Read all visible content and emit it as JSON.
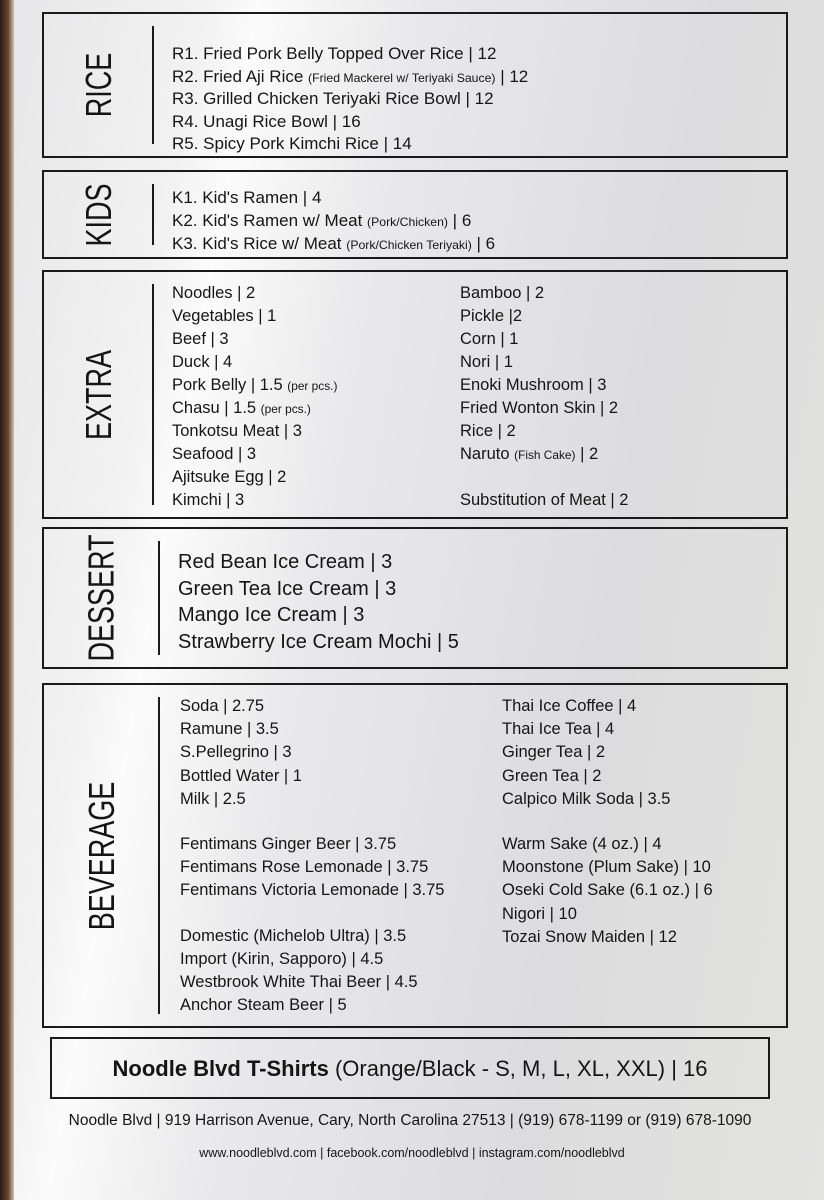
{
  "sections": [
    {
      "title": "RICE",
      "cols": [
        [
          [
            {
              "t": "R1.   Fried Pork Belly Topped Over Rice | 12"
            }
          ],
          [
            {
              "t": "R2.   Fried Aji Rice "
            },
            {
              "t": "(Fried Mackerel w/ Teriyaki Sauce)",
              "s": 1
            },
            {
              "t": " | 12"
            }
          ],
          [
            {
              "t": "R3.   Grilled Chicken Teriyaki Rice Bowl | 12"
            }
          ],
          [
            {
              "t": "R4.   Unagi Rice Bowl | 16"
            }
          ],
          [
            {
              "t": "R5.   Spicy Pork Kimchi Rice | 14"
            }
          ]
        ]
      ]
    },
    {
      "title": "KIDS",
      "cols": [
        [
          [
            {
              "t": "K1.   Kid's Ramen | 4"
            }
          ],
          [
            {
              "t": "K2.   Kid's Ramen w/ Meat "
            },
            {
              "t": "(Pork/Chicken)",
              "s": 1
            },
            {
              "t": " | 6"
            }
          ],
          [
            {
              "t": "K3.   Kid's Rice w/ Meat "
            },
            {
              "t": "(Pork/Chicken Teriyaki)",
              "s": 1
            },
            {
              "t": " | 6"
            }
          ]
        ]
      ]
    },
    {
      "title": "EXTRA",
      "cols": [
        [
          [
            {
              "t": "Noodles | 2"
            }
          ],
          [
            {
              "t": "Vegetables | 1"
            }
          ],
          [
            {
              "t": "Beef | 3"
            }
          ],
          [
            {
              "t": "Duck | 4"
            }
          ],
          [
            {
              "t": "Pork Belly | 1.5 "
            },
            {
              "t": "(per pcs.)",
              "s": 1
            }
          ],
          [
            {
              "t": "Chasu | 1.5 "
            },
            {
              "t": "(per pcs.)",
              "s": 1
            }
          ],
          [
            {
              "t": "Tonkotsu Meat | 3"
            }
          ],
          [
            {
              "t": "Seafood | 3"
            }
          ],
          [
            {
              "t": "Ajitsuke Egg | 2"
            }
          ],
          [
            {
              "t": "Kimchi | 3"
            }
          ]
        ],
        [
          [
            {
              "t": "Bamboo | 2"
            }
          ],
          [
            {
              "t": "Pickle |2"
            }
          ],
          [
            {
              "t": "Corn | 1"
            }
          ],
          [
            {
              "t": "Nori | 1"
            }
          ],
          [
            {
              "t": "Enoki Mushroom | 3"
            }
          ],
          [
            {
              "t": "Fried Wonton Skin | 2"
            }
          ],
          [
            {
              "t": "Rice | 2"
            }
          ],
          [
            {
              "t": "Naruto "
            },
            {
              "t": "(Fish Cake)",
              "s": 1
            },
            {
              "t": " | 2"
            }
          ],
          [],
          [
            {
              "t": "Substitution of Meat | 2"
            }
          ]
        ]
      ]
    },
    {
      "title": "DESSERT",
      "cols": [
        [
          [
            {
              "t": "Red Bean Ice Cream | 3"
            }
          ],
          [
            {
              "t": "Green Tea Ice Cream | 3"
            }
          ],
          [
            {
              "t": "Mango Ice Cream | 3"
            }
          ],
          [
            {
              "t": "Strawberry Ice Cream Mochi | 5"
            }
          ]
        ]
      ]
    },
    {
      "title": "BEVERAGE",
      "cols": [
        [
          [
            {
              "t": "Soda | 2.75"
            }
          ],
          [
            {
              "t": "Ramune | 3.5"
            }
          ],
          [
            {
              "t": "S.Pellegrino | 3"
            }
          ],
          [
            {
              "t": "Bottled Water | 1"
            }
          ],
          [
            {
              "t": "Milk | 2.5"
            }
          ],
          null,
          [
            {
              "t": "Fentimans Ginger Beer | 3.75"
            }
          ],
          [
            {
              "t": "Fentimans Rose Lemonade | 3.75"
            }
          ],
          [
            {
              "t": "Fentimans Victoria Lemonade | 3.75"
            }
          ],
          null,
          [
            {
              "t": "Domestic (Michelob Ultra) | 3.5"
            }
          ],
          [
            {
              "t": "Import (Kirin, Sapporo) | 4.5"
            }
          ],
          [
            {
              "t": "Westbrook White Thai Beer | 4.5"
            }
          ],
          [
            {
              "t": "Anchor Steam Beer | 5"
            }
          ]
        ],
        [
          [
            {
              "t": "Thai Ice Coffee | 4"
            }
          ],
          [
            {
              "t": "Thai Ice Tea | 4"
            }
          ],
          [
            {
              "t": "Ginger Tea | 2"
            }
          ],
          [
            {
              "t": "Green Tea | 2"
            }
          ],
          [
            {
              "t": "Calpico Milk Soda  | 3.5"
            }
          ],
          null,
          [
            {
              "t": "Warm Sake (4 oz.) | 4"
            }
          ],
          [
            {
              "t": "Moonstone (Plum Sake) | 10"
            }
          ],
          [
            {
              "t": "Oseki Cold Sake (6.1 oz.) | 6"
            }
          ],
          [
            {
              "t": "Nigori | 10"
            }
          ],
          [
            {
              "t": "Tozai Snow Maiden | 12"
            }
          ]
        ]
      ]
    }
  ],
  "tshirt": {
    "name": "Noodle Blvd T-Shirts",
    "options": " (Orange/Black  -  S, M, L, XL, XXL) | 16"
  },
  "footer": {
    "address": "Noodle Blvd | 919 Harrison Avenue, Cary, North Carolina 27513 | (919) 678-1199 or (919) 678-1090",
    "links": "www.noodleblvd.com | facebook.com/noodleblvd | instagram.com/noodleblvd"
  }
}
